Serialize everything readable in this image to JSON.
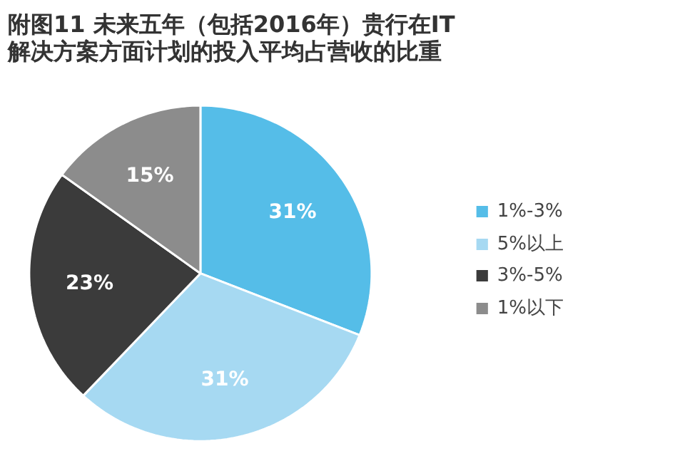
{
  "chart_data": {
    "type": "pie",
    "title": "附图11  未来五年（包括2016年）贵行在IT\n解决方案方面计划的投入平均占营收的比重",
    "categories": [
      "1%-3%",
      "5%以上",
      "3%-5%",
      "1%以下"
    ],
    "values": [
      31,
      31,
      23,
      15
    ],
    "colors": [
      "#55bde8",
      "#a6d9f2",
      "#3b3b3b",
      "#8c8c8c"
    ],
    "value_labels": [
      "31%",
      "31%",
      "23%",
      "15%"
    ],
    "legend": "right"
  }
}
